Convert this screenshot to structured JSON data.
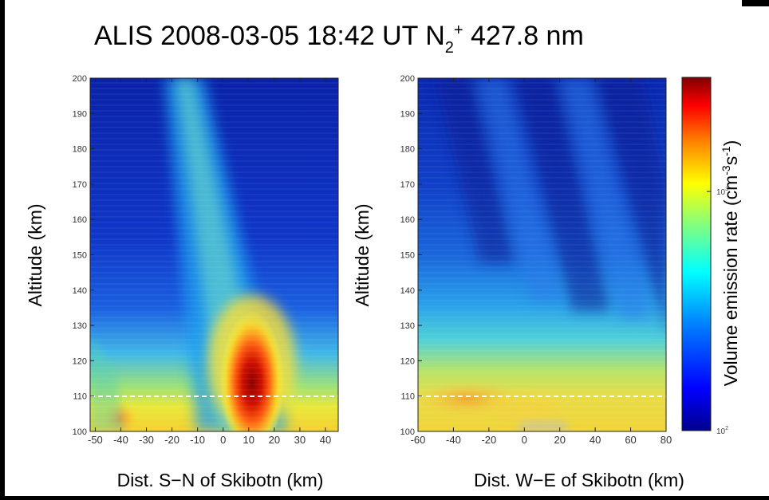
{
  "figure": {
    "title_main": "ALIS 2008-03-05 18:42 UT N",
    "title_sub": "2",
    "title_sup": "+",
    "title_tail": " 427.8 nm"
  },
  "chart_data": [
    {
      "type": "heatmap",
      "panel": "left",
      "xlabel": "Dist. S−N of Skibotn (km)",
      "ylabel": "Altitude (km)",
      "xlim": [
        -52,
        45
      ],
      "ylim": [
        100,
        200
      ],
      "xticks": [
        -50,
        -40,
        -30,
        -20,
        -10,
        0,
        10,
        20,
        30,
        40
      ],
      "xtick_labels": [
        "-50",
        "-40",
        "-30",
        "-20",
        "-10",
        "0",
        "10",
        "20",
        "30",
        "40"
      ],
      "yticks": [
        100,
        110,
        120,
        130,
        140,
        150,
        160,
        170,
        180,
        190,
        200
      ],
      "reference_line_altitude": 110,
      "features": {
        "emission_peak": {
          "x": 10,
          "altitude": 110,
          "level": "max"
        },
        "arc_tilt": "emission extends from ~10 km at 110 km altitude up to ~-18 km at 200 km altitude",
        "secondary_patch": {
          "x": -40,
          "altitude": 104
        }
      }
    },
    {
      "type": "heatmap",
      "panel": "right",
      "xlabel": "Dist. W−E of Skibotn (km)",
      "ylabel": "Altitude (km)",
      "xlim": [
        -60,
        80
      ],
      "ylim": [
        100,
        200
      ],
      "xticks": [
        -60,
        -40,
        -20,
        0,
        20,
        40,
        60,
        80
      ],
      "xtick_labels": [
        "-60",
        "-40",
        "-20",
        "0",
        "20",
        "40",
        "60",
        "80"
      ],
      "yticks": [
        100,
        110,
        120,
        130,
        140,
        150,
        160,
        170,
        180,
        190,
        200
      ],
      "reference_line_altitude": 110,
      "features": {
        "emission_layer": {
          "altitude_range": [
            100,
            118
          ],
          "level": "moderate"
        },
        "diagonal_stripes": "alternating dark/light blue bands tilted above 140 km"
      }
    }
  ],
  "colorbar": {
    "label_main": "Volume emission rate (cm",
    "label_sup1": "-3",
    "label_mid": "s",
    "label_sup2": "-1",
    "label_tail": ")",
    "scale": "log",
    "range": [
      100,
      3000
    ],
    "ticks": [
      {
        "value": 100,
        "base": "10",
        "exp": "2"
      },
      {
        "value": 1000,
        "base": "10",
        "exp": "3"
      }
    ],
    "colormap": [
      "#00008f",
      "#0000ff",
      "#0080ff",
      "#00ffff",
      "#80ff80",
      "#ffff00",
      "#ff8000",
      "#ff0000",
      "#800000"
    ]
  }
}
